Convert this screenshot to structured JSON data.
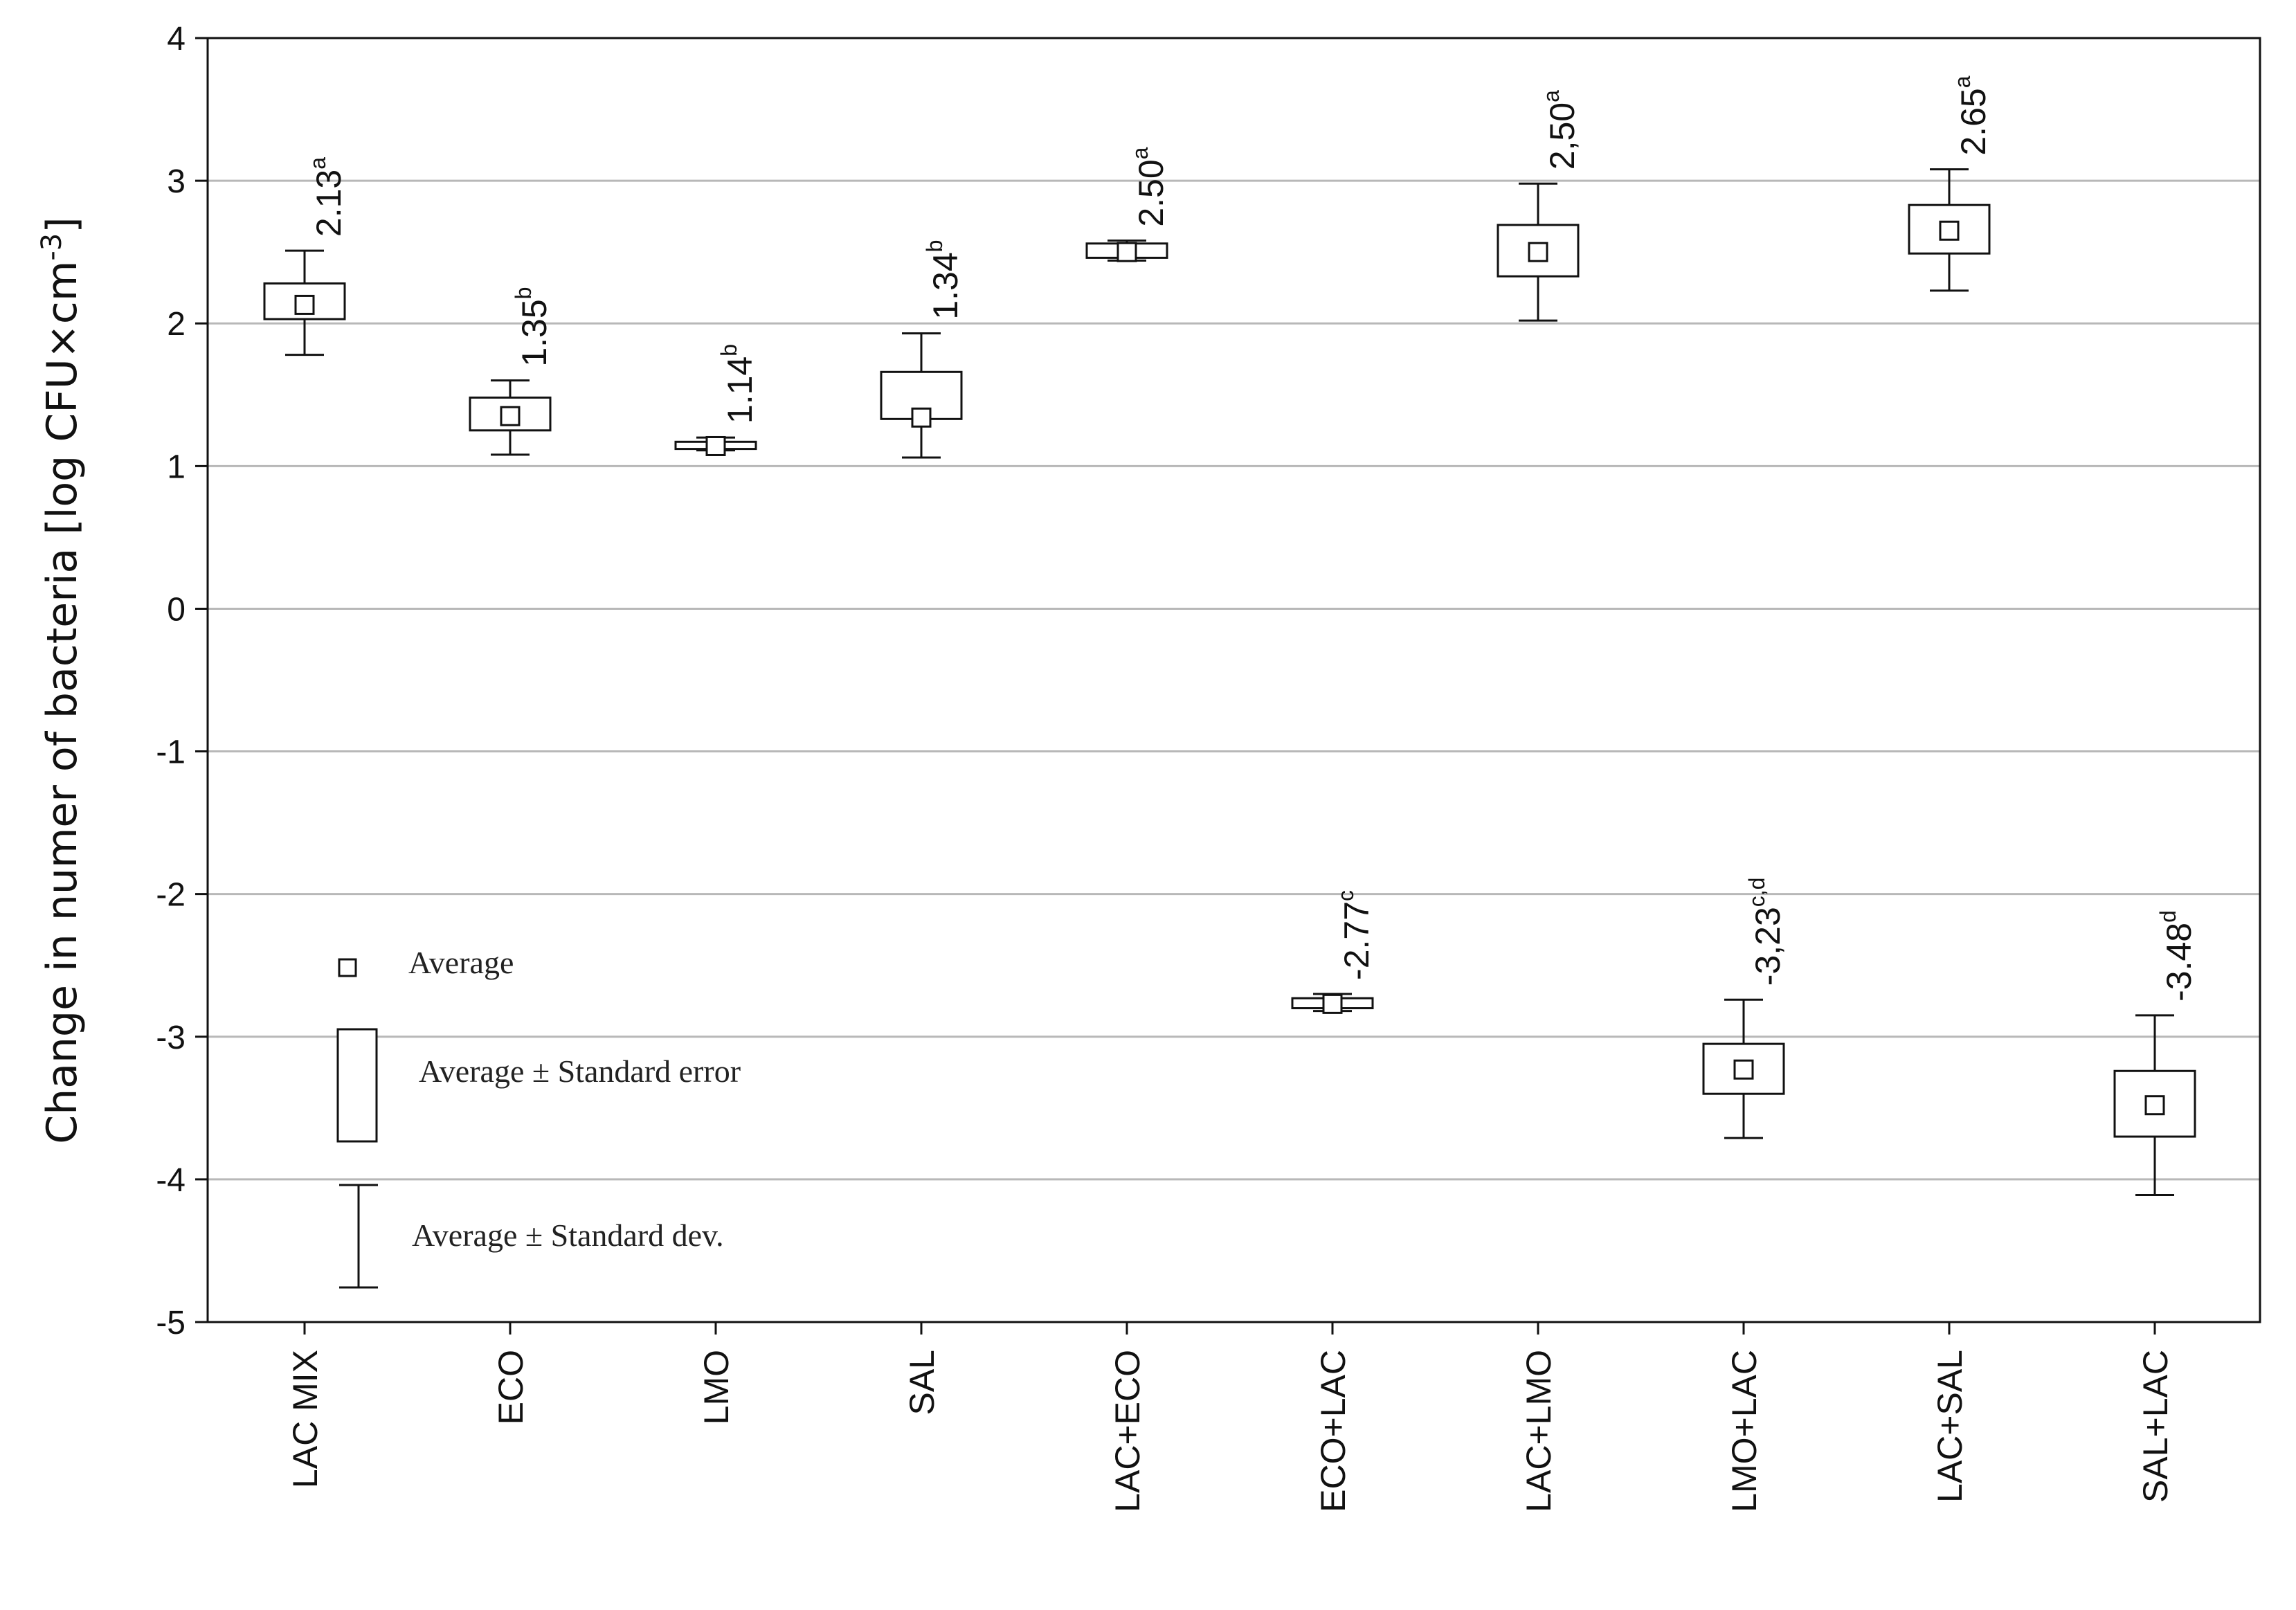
{
  "chart_data": {
    "type": "box",
    "title": "",
    "xlabel": "",
    "ylabel": "Change in numer of bacteria [log CFU×cm",
    "ylabel_superscript": "-3",
    "ylabel_close": "]",
    "ylim": [
      -5,
      4
    ],
    "yticks": [
      4,
      3,
      2,
      1,
      0,
      -1,
      -2,
      -3,
      -4,
      -5
    ],
    "grid": "horizontal",
    "categories": [
      "LAC MIX",
      "ECO",
      "LMO",
      "SAL",
      "LAC+ECO",
      "ECO+LAC",
      "LAC+LMO",
      "LMO+LAC",
      "LAC+SAL",
      "SAL+LAC"
    ],
    "mean": [
      2.13,
      1.35,
      1.14,
      1.34,
      2.5,
      -2.77,
      2.5,
      -3.23,
      2.65,
      -3.48
    ],
    "se_low": [
      2.03,
      1.25,
      1.12,
      1.33,
      2.46,
      -2.8,
      2.33,
      -3.4,
      2.49,
      -3.7
    ],
    "se_high": [
      2.28,
      1.48,
      1.17,
      1.66,
      2.56,
      -2.73,
      2.69,
      -3.05,
      2.83,
      -3.24
    ],
    "sd_low": [
      1.78,
      1.08,
      1.11,
      1.06,
      2.44,
      -2.82,
      2.02,
      -3.71,
      2.23,
      -4.11
    ],
    "sd_high": [
      2.51,
      1.6,
      1.2,
      1.93,
      2.58,
      -2.7,
      2.98,
      -2.74,
      3.08,
      -2.85
    ],
    "labels": [
      {
        "value": "2.13",
        "sup": "a"
      },
      {
        "value": "1.35",
        "sup": "b"
      },
      {
        "value": "1.14",
        "sup": "b"
      },
      {
        "value": "1.34",
        "sup": "b"
      },
      {
        "value": "2.50",
        "sup": "a"
      },
      {
        "value": "-2.77",
        "sup": "c"
      },
      {
        "value": "2,50",
        "sup": "a"
      },
      {
        "value": "-3,23",
        "sup": "c,d"
      },
      {
        "value": "2.65",
        "sup": "a"
      },
      {
        "value": "-3.48",
        "sup": "d"
      }
    ],
    "legend": {
      "position": "lower-left",
      "entries": [
        {
          "name": "Average",
          "symbol": "small-square"
        },
        {
          "name": "Average ± Standard error",
          "symbol": "box"
        },
        {
          "name": "Average ± Standard dev.",
          "symbol": "whisker"
        }
      ]
    }
  }
}
